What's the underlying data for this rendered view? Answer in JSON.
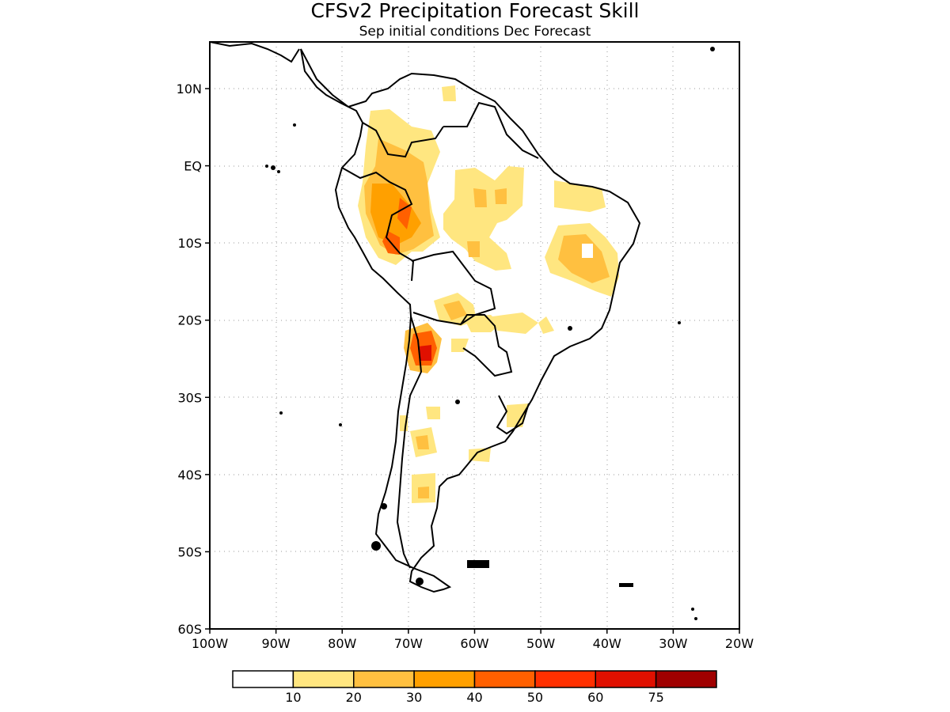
{
  "title": "CFSv2 Precipitation Forecast Skill",
  "subtitle": "Sep initial conditions  Dec Forecast",
  "axes": {
    "lon_ticks": [
      "100W",
      "90W",
      "80W",
      "70W",
      "60W",
      "50W",
      "40W",
      "30W",
      "20W"
    ],
    "lat_ticks": [
      "10N",
      "EQ",
      "10S",
      "20S",
      "30S",
      "40S",
      "50S",
      "60S"
    ]
  },
  "colorbar": {
    "colors": [
      "#ffffff",
      "#ffe680",
      "#ffc040",
      "#ffa000",
      "#ff6000",
      "#ff3000",
      "#e01000",
      "#a00000"
    ],
    "labels": [
      "10",
      "20",
      "30",
      "40",
      "50",
      "60",
      "75"
    ]
  }
}
